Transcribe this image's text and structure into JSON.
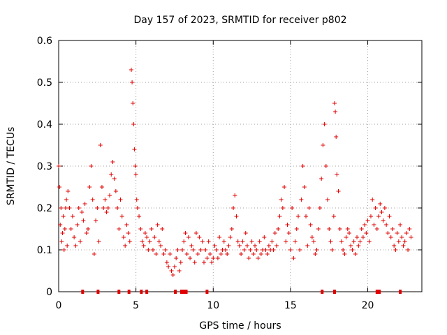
{
  "chart_data": {
    "type": "scatter",
    "title": "Day 157 of 2023, SRMTID for receiver p802",
    "xlabel": "GPS time / hours",
    "ylabel": "SRMTID / TECUs",
    "xlim": [
      0,
      23.5
    ],
    "ylim": [
      0,
      0.6
    ],
    "xticks": [
      0,
      5,
      10,
      15,
      20
    ],
    "xtick_labels": [
      "0",
      "5",
      "10",
      "15",
      "20"
    ],
    "yticks": [
      0,
      0.1,
      0.2,
      0.3,
      0.4,
      0.5,
      0.6
    ],
    "ytick_labels": [
      "0",
      "0.1",
      "0.2",
      "0.3",
      "0.4",
      "0.5",
      "0.6"
    ],
    "grid": true,
    "marker": "+",
    "color": "#e00000",
    "series": [
      {
        "name": "SRMTID",
        "x": [
          0.0,
          0.05,
          0.1,
          0.15,
          0.2,
          0.25,
          0.3,
          0.35,
          0.4,
          0.45,
          0.5,
          0.55,
          0.6,
          0.7,
          0.8,
          0.9,
          1.0,
          1.1,
          1.2,
          1.3,
          1.4,
          1.5,
          1.6,
          1.7,
          1.8,
          1.9,
          2.0,
          2.1,
          2.2,
          2.3,
          2.4,
          2.5,
          2.6,
          2.7,
          2.8,
          2.9,
          3.0,
          3.1,
          3.2,
          3.3,
          3.4,
          3.5,
          3.6,
          3.7,
          3.8,
          3.9,
          4.0,
          4.1,
          4.2,
          4.3,
          4.4,
          4.5,
          4.6,
          4.7,
          4.75,
          4.8,
          4.85,
          4.9,
          4.95,
          5.0,
          5.05,
          5.1,
          5.2,
          5.3,
          5.4,
          5.5,
          5.6,
          5.7,
          5.8,
          5.9,
          6.0,
          6.1,
          6.2,
          6.3,
          6.4,
          6.5,
          6.6,
          6.7,
          6.8,
          6.9,
          7.0,
          7.1,
          7.2,
          7.3,
          7.4,
          7.5,
          7.6,
          7.7,
          7.8,
          7.9,
          8.0,
          8.1,
          8.2,
          8.3,
          8.4,
          8.5,
          8.6,
          8.7,
          8.8,
          8.9,
          9.0,
          9.1,
          9.2,
          9.3,
          9.4,
          9.5,
          9.6,
          9.7,
          9.8,
          9.9,
          10.0,
          10.1,
          10.2,
          10.3,
          10.4,
          10.5,
          10.6,
          10.7,
          10.8,
          10.9,
          11.0,
          11.1,
          11.2,
          11.3,
          11.4,
          11.5,
          11.6,
          11.7,
          11.8,
          11.9,
          12.0,
          12.1,
          12.2,
          12.3,
          12.4,
          12.5,
          12.6,
          12.7,
          12.8,
          12.9,
          13.0,
          13.1,
          13.2,
          13.3,
          13.4,
          13.5,
          13.6,
          13.7,
          13.8,
          13.9,
          14.0,
          14.1,
          14.2,
          14.3,
          14.4,
          14.5,
          14.6,
          14.7,
          14.8,
          14.9,
          15.0,
          15.1,
          15.2,
          15.3,
          15.4,
          15.5,
          15.6,
          15.7,
          15.8,
          15.9,
          16.0,
          16.1,
          16.2,
          16.3,
          16.4,
          16.5,
          16.6,
          16.7,
          16.8,
          16.9,
          17.0,
          17.1,
          17.2,
          17.3,
          17.4,
          17.5,
          17.6,
          17.7,
          17.8,
          17.85,
          17.9,
          17.95,
          18.0,
          18.1,
          18.2,
          18.3,
          18.4,
          18.5,
          18.6,
          18.7,
          18.8,
          18.9,
          19.0,
          19.1,
          19.2,
          19.3,
          19.4,
          19.5,
          19.6,
          19.7,
          19.8,
          19.9,
          20.0,
          20.1,
          20.2,
          20.3,
          20.4,
          20.5,
          20.6,
          20.7,
          20.8,
          20.9,
          21.0,
          21.1,
          21.2,
          21.3,
          21.4,
          21.5,
          21.6,
          21.7,
          21.8,
          21.9,
          22.0,
          22.1,
          22.2,
          22.3,
          22.4,
          22.5,
          22.6,
          22.7,
          22.8
        ],
        "y": [
          0.3,
          0.25,
          0.16,
          0.2,
          0.12,
          0.14,
          0.18,
          0.1,
          0.15,
          0.2,
          0.22,
          0.11,
          0.24,
          0.2,
          0.15,
          0.18,
          0.13,
          0.11,
          0.16,
          0.2,
          0.12,
          0.19,
          0.17,
          0.21,
          0.14,
          0.15,
          0.25,
          0.3,
          0.22,
          0.09,
          0.17,
          0.2,
          0.12,
          0.35,
          0.25,
          0.2,
          0.22,
          0.19,
          0.2,
          0.23,
          0.28,
          0.31,
          0.27,
          0.24,
          0.2,
          0.15,
          0.22,
          0.18,
          0.13,
          0.11,
          0.16,
          0.14,
          0.12,
          0.53,
          0.5,
          0.45,
          0.4,
          0.34,
          0.3,
          0.28,
          0.22,
          0.2,
          0.18,
          0.15,
          0.12,
          0.11,
          0.14,
          0.13,
          0.1,
          0.12,
          0.15,
          0.1,
          0.13,
          0.09,
          0.16,
          0.12,
          0.11,
          0.15,
          0.09,
          0.1,
          0.07,
          0.06,
          0.09,
          0.05,
          0.04,
          0.06,
          0.08,
          0.1,
          0.05,
          0.07,
          0.1,
          0.12,
          0.14,
          0.09,
          0.13,
          0.08,
          0.11,
          0.1,
          0.07,
          0.14,
          0.09,
          0.13,
          0.1,
          0.12,
          0.07,
          0.1,
          0.08,
          0.12,
          0.09,
          0.07,
          0.08,
          0.11,
          0.1,
          0.08,
          0.13,
          0.09,
          0.1,
          0.12,
          0.1,
          0.09,
          0.11,
          0.13,
          0.15,
          0.2,
          0.23,
          0.18,
          0.12,
          0.11,
          0.09,
          0.12,
          0.1,
          0.14,
          0.11,
          0.08,
          0.1,
          0.12,
          0.09,
          0.11,
          0.1,
          0.08,
          0.12,
          0.09,
          0.1,
          0.13,
          0.1,
          0.09,
          0.11,
          0.1,
          0.12,
          0.1,
          0.14,
          0.11,
          0.15,
          0.18,
          0.22,
          0.2,
          0.25,
          0.12,
          0.16,
          0.14,
          0.1,
          0.2,
          0.08,
          0.12,
          0.15,
          0.18,
          0.1,
          0.22,
          0.3,
          0.25,
          0.18,
          0.11,
          0.2,
          0.16,
          0.13,
          0.12,
          0.09,
          0.1,
          0.15,
          0.2,
          0.27,
          0.35,
          0.4,
          0.3,
          0.22,
          0.15,
          0.12,
          0.1,
          0.18,
          0.45,
          0.43,
          0.37,
          0.28,
          0.24,
          0.15,
          0.12,
          0.1,
          0.09,
          0.13,
          0.15,
          0.14,
          0.11,
          0.1,
          0.12,
          0.09,
          0.13,
          0.11,
          0.12,
          0.15,
          0.13,
          0.16,
          0.14,
          0.17,
          0.12,
          0.18,
          0.22,
          0.16,
          0.2,
          0.15,
          0.18,
          0.21,
          0.19,
          0.17,
          0.2,
          0.16,
          0.14,
          0.18,
          0.13,
          0.15,
          0.11,
          0.1,
          0.14,
          0.12,
          0.16,
          0.13,
          0.11,
          0.12,
          0.14,
          0.1,
          0.15,
          0.13
        ]
      },
      {
        "name": "flags",
        "x": [
          1.55,
          2.55,
          3.9,
          4.55,
          5.35,
          5.7,
          7.55,
          7.95,
          8.05,
          8.15,
          8.25,
          9.6,
          17.05,
          17.85,
          20.6,
          20.75,
          22.1
        ],
        "y": [
          0,
          0,
          0,
          0,
          0,
          0,
          0,
          0,
          0,
          0,
          0,
          0,
          0,
          0,
          0,
          0,
          0
        ]
      }
    ]
  }
}
